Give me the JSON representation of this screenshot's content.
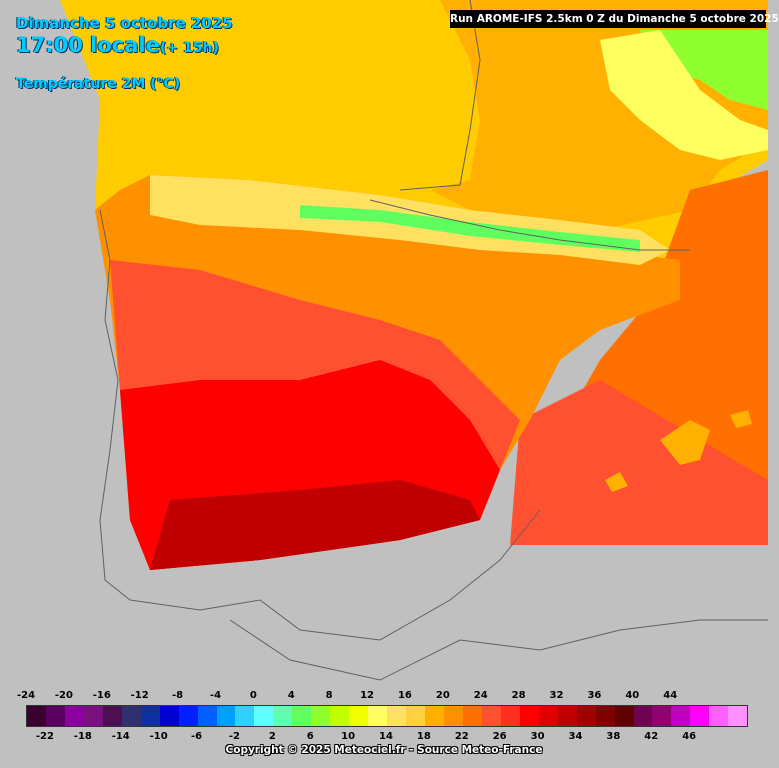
{
  "header": {
    "date": "Dimanche 5 octobre 2025",
    "time": "17:00 locale",
    "lead": "(+ 15h)",
    "parameter": "Température 2M (°C)"
  },
  "run_banner": "Run AROME-IFS 2.5km 0 Z du Dimanche 5 octobre 2025",
  "copyright": "Copyright © 2025 Meteociel.fr - Source Meteo-France",
  "legend": {
    "top_labels": [
      "-24",
      "-20",
      "-16",
      "-12",
      "-8",
      "-4",
      "0",
      "4",
      "8",
      "12",
      "16",
      "20",
      "24",
      "28",
      "32",
      "36",
      "40",
      "44"
    ],
    "bottom_labels": [
      "-22",
      "-18",
      "-14",
      "-10",
      "-6",
      "-2",
      "2",
      "6",
      "10",
      "14",
      "18",
      "22",
      "26",
      "30",
      "34",
      "38",
      "42",
      "46"
    ],
    "colors": [
      "#3a0030",
      "#5a0060",
      "#8a00a0",
      "#7a1080",
      "#4a1050",
      "#303070",
      "#1030a0",
      "#0000d0",
      "#0020ff",
      "#0060ff",
      "#00a0ff",
      "#30d0ff",
      "#60ffff",
      "#60ffb0",
      "#60ff60",
      "#90ff30",
      "#c0ff00",
      "#f0ff00",
      "#ffff60",
      "#ffe060",
      "#ffd040",
      "#ffb000",
      "#ff9000",
      "#ff7000",
      "#ff5030",
      "#ff3020",
      "#ff0000",
      "#e00000",
      "#c00000",
      "#a00000",
      "#800000",
      "#600000",
      "#700050",
      "#900070",
      "#c000c0",
      "#ff00ff",
      "#ff60ff",
      "#ff90ff"
    ]
  },
  "map": {
    "background_color": "#c0c0c0",
    "sea_warm_color": "#ffcc00",
    "border_color": "#606060"
  }
}
